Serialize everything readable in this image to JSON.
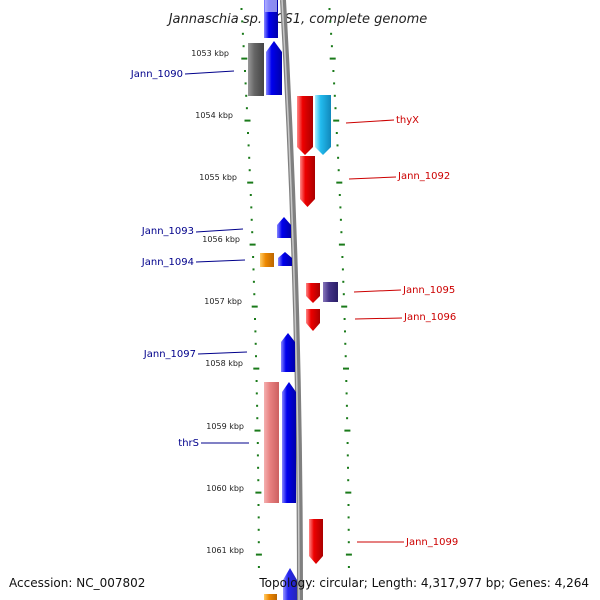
{
  "title": "Jannaschia sp. CCS1, complete genome",
  "footer": {
    "accession": "Accession: NC_007802",
    "topology": "Topology: circular; Length: 4,317,977 bp; Genes: 4,264"
  },
  "scale": {
    "unit": "kbp",
    "ticks": [
      "1053 kbp",
      "1054 kbp",
      "1055 kbp",
      "1056 kbp",
      "1057 kbp",
      "1058 kbp",
      "1059 kbp",
      "1060 kbp",
      "1061 kbp"
    ]
  },
  "colors": {
    "reverse_label": "#00008b",
    "forward_label": "#cc0000",
    "tick_dots": "#1a7a1a",
    "backbone": "#808080"
  },
  "genes": [
    {
      "name": "Jann_1090",
      "strand": "-",
      "color": "#0000ee"
    },
    {
      "name": "thyX",
      "strand": "+",
      "color": "#22bbee"
    },
    {
      "name": "Jann_1092",
      "strand": "+",
      "color": "#ee0000"
    },
    {
      "name": "Jann_1093",
      "strand": "-",
      "color": "#0000ee"
    },
    {
      "name": "Jann_1094",
      "strand": "-",
      "color": "#ee8800"
    },
    {
      "name": "Jann_1095",
      "strand": "+",
      "color": "#443388"
    },
    {
      "name": "Jann_1096",
      "strand": "+",
      "color": "#ee0000"
    },
    {
      "name": "Jann_1097",
      "strand": "-",
      "color": "#0000ee"
    },
    {
      "name": "thrS",
      "strand": "-",
      "color": "#0000ee"
    },
    {
      "name": "Jann_1099",
      "strand": "+",
      "color": "#ee0000"
    }
  ]
}
